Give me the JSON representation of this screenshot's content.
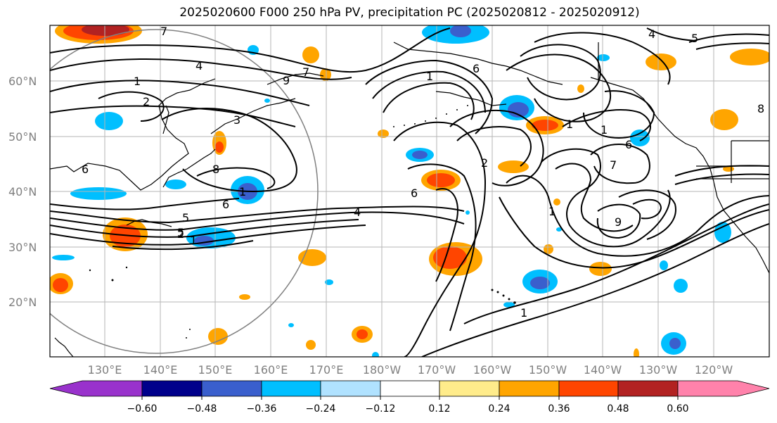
{
  "title": "2025020600 F000 250 hPa PV, precipitation PC (2025020812 - 2025020912)",
  "lat_labels": [
    "60°N",
    "50°N",
    "40°N",
    "30°N",
    "20°N"
  ],
  "lon_labels": [
    "130°E",
    "140°E",
    "150°E",
    "160°E",
    "170°E",
    "180°W",
    "170°W",
    "160°W",
    "150°W",
    "140°W",
    "130°W",
    "120°W"
  ],
  "colorbar": {
    "colors": [
      "#9932cc",
      "#00008b",
      "#3a5fcd",
      "#00bfff",
      "#b0e2ff",
      "#ffffff",
      "#ffec8b",
      "#ffa500",
      "#ff4500",
      "#b22222",
      "#ff82ab"
    ],
    "tick_labels": [
      "−0.60",
      "−0.48",
      "−0.36",
      "−0.24",
      "−0.12",
      "0.12",
      "0.24",
      "0.36",
      "0.48",
      "0.60"
    ]
  },
  "contour_labels": [
    "7",
    "4",
    "1",
    "2",
    "3",
    "9",
    "7",
    "1",
    "6",
    "6",
    "5",
    "8",
    "6",
    "1",
    "5",
    "2",
    "4",
    "6",
    "2",
    "1",
    "7",
    "6",
    "9",
    "1",
    "1",
    "4",
    "5",
    "1",
    "8",
    "1"
  ]
}
